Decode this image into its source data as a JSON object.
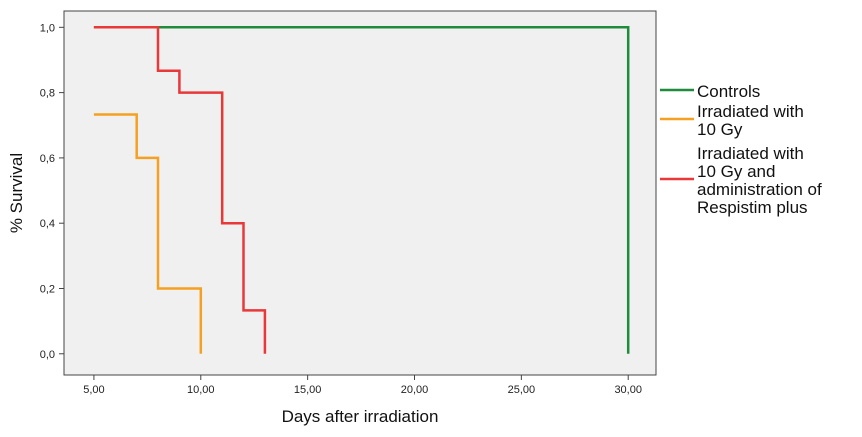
{
  "chart_data": {
    "type": "line",
    "step": true,
    "xlabel": "Days after irradiation",
    "ylabel": "% Survival",
    "xlim": [
      3.6,
      31.3
    ],
    "ylim": [
      -0.065,
      1.05
    ],
    "x_ticks": [
      5,
      10,
      15,
      20,
      25,
      30
    ],
    "x_tick_labels": [
      "5,00",
      "10,00",
      "15,00",
      "20,00",
      "25,00",
      "30,00"
    ],
    "y_ticks": [
      0,
      0.2,
      0.4,
      0.6,
      0.8,
      1.0
    ],
    "y_tick_labels": [
      "0,0",
      "0,2",
      "0,4",
      "0,6",
      "0,8",
      "1,0"
    ],
    "grid": false,
    "legend_position": "right",
    "plot_background": "#f0f0f0",
    "series": [
      {
        "name": "Controls",
        "legend_lines": [
          "Controls"
        ],
        "color": "#1e8c3c",
        "points": [
          [
            5,
            1.0
          ],
          [
            30,
            1.0
          ],
          [
            30,
            0.0
          ]
        ]
      },
      {
        "name": "Irradiated with 10 Gy",
        "legend_lines": [
          "Irradiated with",
          "10 Gy"
        ],
        "color": "#f5a020",
        "points": [
          [
            5,
            0.733
          ],
          [
            7,
            0.733
          ],
          [
            7,
            0.6
          ],
          [
            8,
            0.6
          ],
          [
            8,
            0.2
          ],
          [
            10,
            0.2
          ],
          [
            10,
            0.0
          ]
        ]
      },
      {
        "name": "Irradiated with 10 Gy and administration of Respistim plus",
        "legend_lines": [
          "Irradiated with",
          "10 Gy and",
          "administration of",
          "Respistim plus"
        ],
        "color": "#e8383a",
        "points": [
          [
            5,
            1.0
          ],
          [
            8,
            1.0
          ],
          [
            8,
            0.867
          ],
          [
            9,
            0.867
          ],
          [
            9,
            0.8
          ],
          [
            11,
            0.8
          ],
          [
            11,
            0.4
          ],
          [
            12,
            0.4
          ],
          [
            12,
            0.133
          ],
          [
            13,
            0.133
          ],
          [
            13,
            0.0
          ]
        ]
      }
    ]
  }
}
